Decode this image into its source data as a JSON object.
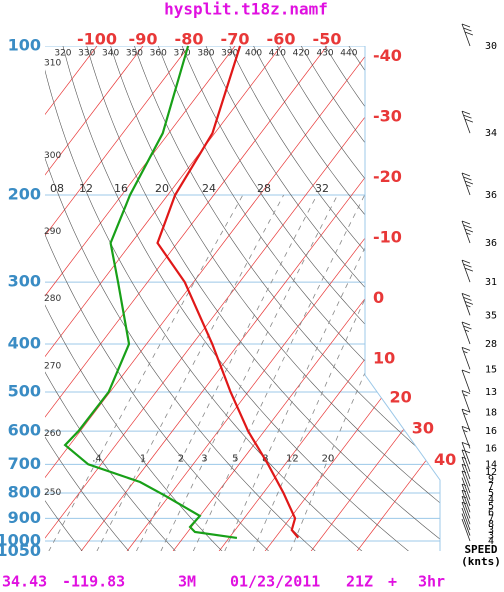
{
  "chart_data": {
    "type": "skewt",
    "title": "hysplit.t18z.namf",
    "log_y": true,
    "ylim": [
      1050,
      100
    ],
    "yticks": [
      100,
      200,
      300,
      400,
      500,
      600,
      700,
      800,
      900,
      1000,
      1050
    ],
    "xticks": [
      -100,
      -90,
      -80,
      -70,
      -60,
      -50,
      -40,
      -30,
      -20,
      -10,
      0,
      10,
      20,
      30,
      40
    ],
    "isotherm_color": "#e83838",
    "dry_adiabats": [
      250,
      260,
      270,
      280,
      290,
      300,
      310,
      320,
      330,
      340,
      350,
      360,
      370,
      380,
      390,
      400,
      410,
      420,
      430,
      440
    ],
    "mixing_ratios": [
      {
        "value": 0.4,
        "label": ".4"
      },
      1,
      2,
      3,
      5,
      8,
      12,
      20
    ],
    "moist_adiabats": [
      {
        "value": 8,
        "label": "08"
      },
      12,
      16,
      20,
      24,
      28,
      32
    ],
    "series": [
      {
        "color": "#e01818",
        "pressures": [
          100,
          150,
          200,
          250,
          300,
          400,
          500,
          600,
          700,
          800,
          900,
          950,
          985
        ],
        "values": [
          -68.9,
          -60.5,
          -58.4,
          -54.3,
          -41.9,
          -25.7,
          -13.8,
          -3.5,
          6.3,
          14.4,
          21.1,
          22.3,
          25
        ]
      },
      {
        "color": "#18a018",
        "pressures": [
          100,
          150,
          200,
          250,
          300,
          400,
          500,
          600,
          640,
          700,
          760,
          810,
          890,
          937,
          959,
          986
        ],
        "values": [
          -80.2,
          -71.3,
          -68.2,
          -64.5,
          -56.4,
          -43.8,
          -40.3,
          -40.4,
          -41,
          -32.8,
          -18.6,
          -10.9,
          0,
          -0.3,
          1.6,
          11.7
        ]
      }
    ],
    "winds": {
      "pressures": [
        100,
        150,
        200,
        250,
        300,
        350,
        400,
        450,
        500,
        550,
        600,
        650,
        700,
        725,
        750,
        775,
        800,
        825,
        850,
        875,
        900,
        925,
        950,
        975,
        1000
      ],
      "speeds": [
        30,
        34,
        36,
        36,
        31,
        35,
        28,
        15,
        13,
        18,
        16,
        16,
        14,
        12,
        9,
        7,
        5,
        4,
        5,
        6,
        7,
        8,
        3,
        3,
        4
      ],
      "label": "SPEED",
      "units": "(knts)"
    }
  },
  "footer": {
    "lat": "34.43",
    "lon": "-119.83",
    "elev": "3M",
    "date": "01/23/2011",
    "time": "21Z",
    "plus": "+",
    "lead": "3hr"
  }
}
